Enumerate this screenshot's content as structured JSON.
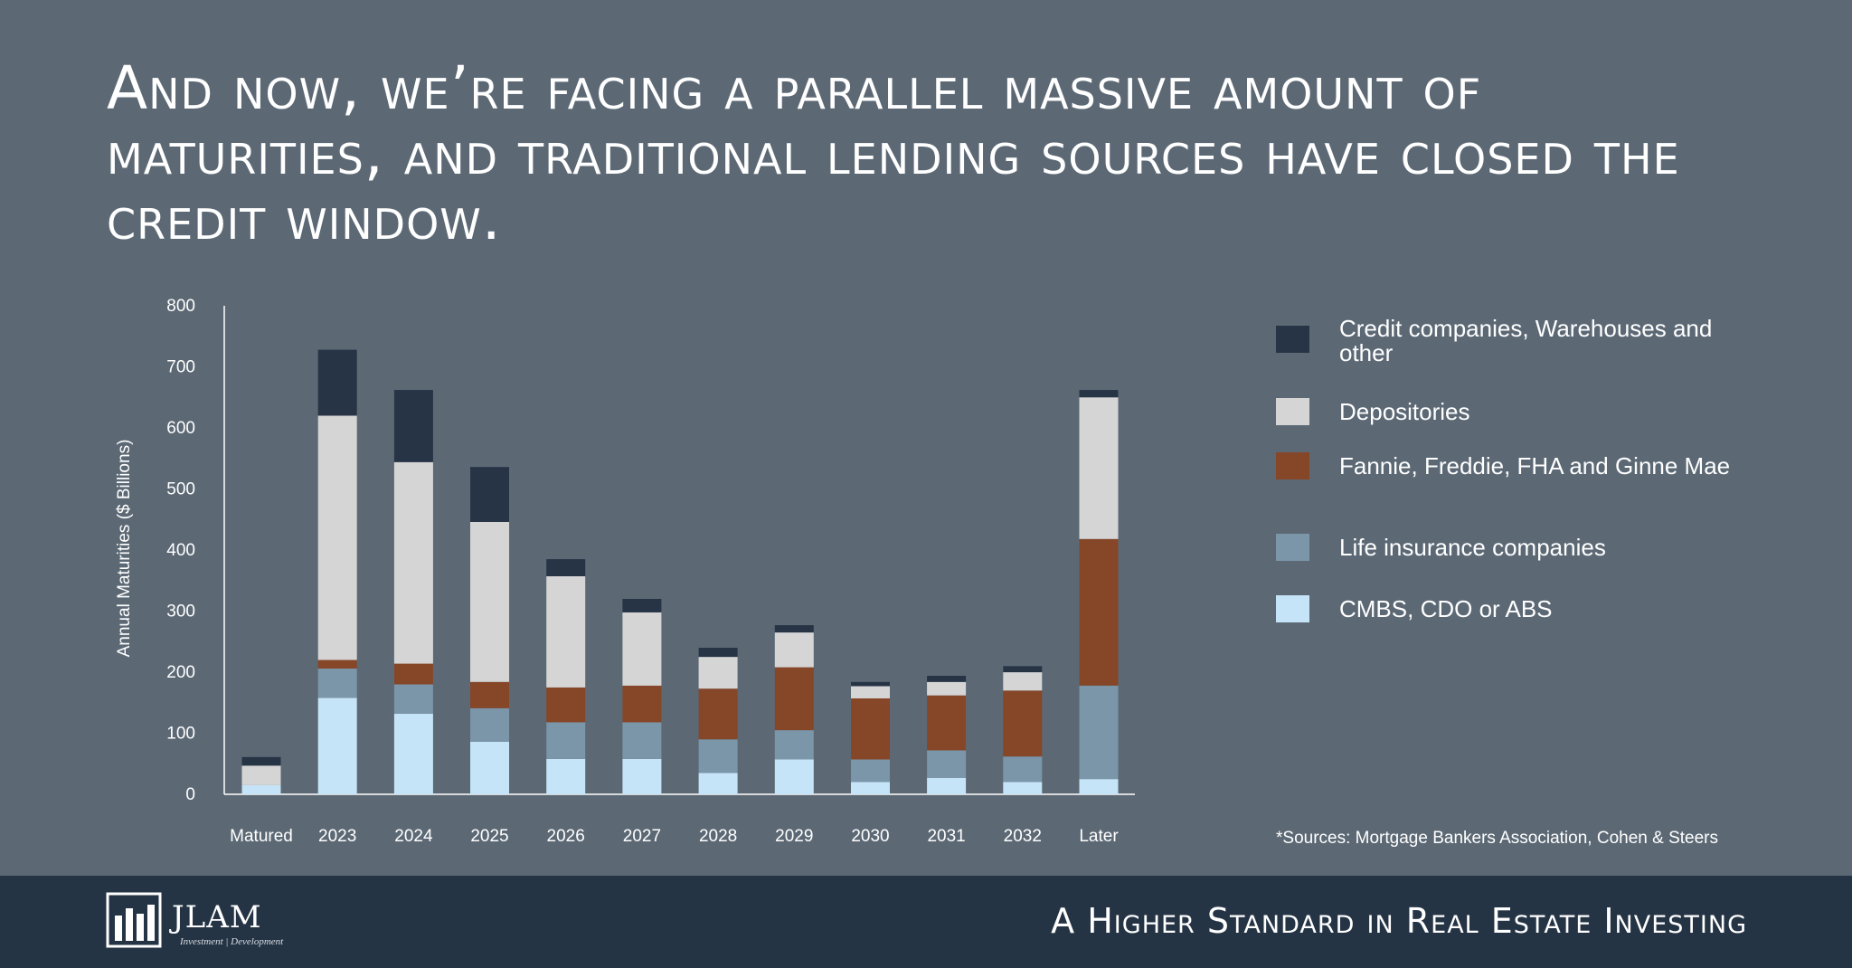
{
  "headline": "And now, we’re facing a parallel massive amount of maturities, and traditional lending sources have closed the credit window.",
  "chart_data": {
    "type": "bar",
    "stacked": true,
    "ylabel": "Annual Maturities ($ Billions)",
    "ylim": [
      0,
      800
    ],
    "yticks": [
      "0",
      "100",
      "200",
      "300",
      "400",
      "500",
      "600",
      "700",
      "800"
    ],
    "categories": [
      "Matured",
      "2023",
      "2024",
      "2025",
      "2026",
      "2027",
      "2028",
      "2029",
      "2030",
      "2031",
      "2032",
      "Later"
    ],
    "series": [
      {
        "name": "CMBS, CDO or ABS",
        "color": "#c6e4f7",
        "values": [
          15,
          158,
          132,
          86,
          58,
          58,
          35,
          57,
          20,
          27,
          20,
          25
        ]
      },
      {
        "name": "Life insurance companies",
        "color": "#7b95a9",
        "values": [
          0,
          48,
          48,
          55,
          60,
          60,
          55,
          48,
          37,
          45,
          42,
          153
        ]
      },
      {
        "name": "Fannie, Freddie, FHA and Ginne Mae",
        "color": "#864628",
        "values": [
          0,
          14,
          34,
          43,
          57,
          60,
          83,
          103,
          100,
          90,
          108,
          240
        ]
      },
      {
        "name": "Depositories",
        "color": "#d5d5d5",
        "values": [
          32,
          400,
          330,
          262,
          182,
          120,
          52,
          57,
          20,
          22,
          30,
          232
        ]
      },
      {
        "name": "Credit companies, Warehouses and other",
        "color": "#263445",
        "values": [
          14,
          108,
          118,
          90,
          28,
          22,
          15,
          12,
          7,
          10,
          10,
          12
        ]
      }
    ],
    "legend_position": "right",
    "grid": false
  },
  "legend_items": [
    {
      "label": "Credit companies, Warehouses and other",
      "color": "#263445"
    },
    {
      "label": "Depositories",
      "color": "#d5d5d5"
    },
    {
      "label": "Fannie, Freddie, FHA and Ginne Mae",
      "color": "#864628"
    },
    {
      "label": "Life insurance companies",
      "color": "#7b95a9"
    },
    {
      "label": "CMBS, CDO or ABS",
      "color": "#c6e4f7"
    }
  ],
  "sources": "*Sources: Mortgage Bankers Association, Cohen & Steers",
  "footer": {
    "logo_name": "JLAM",
    "logo_tagline": "Investment | Development",
    "tagline": "A Higher Standard in Real Estate Investing"
  }
}
